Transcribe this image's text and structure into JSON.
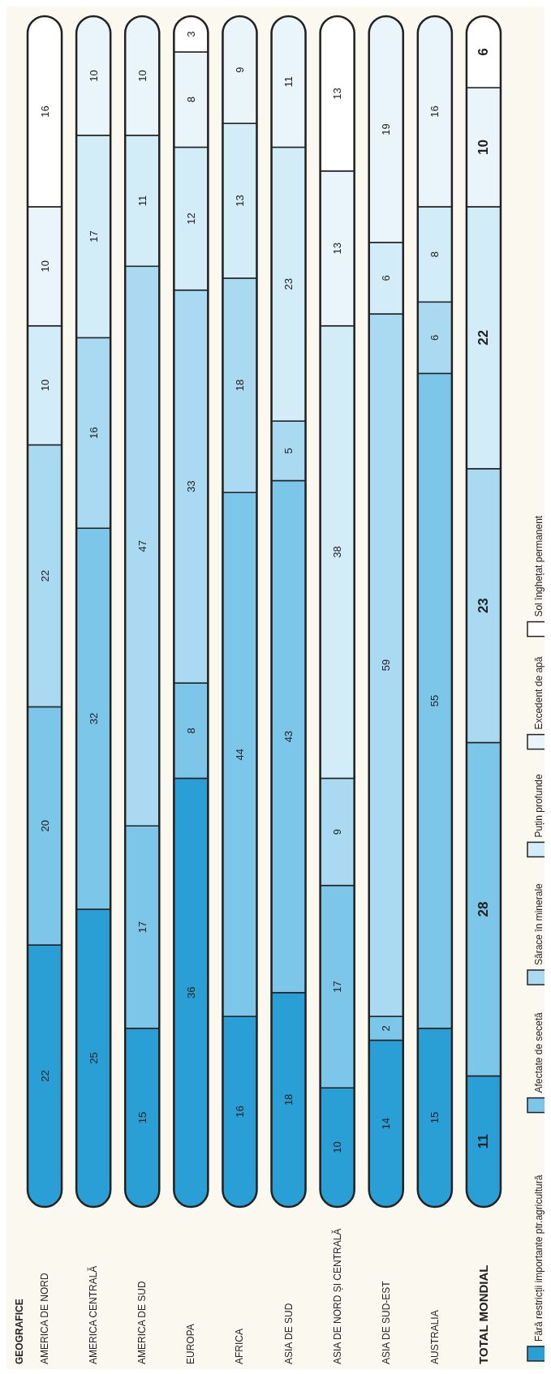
{
  "chart_data": {
    "type": "bar",
    "annotations": [
      "GEOGRAFICE"
    ],
    "stacked": true,
    "data_labels": true,
    "legend": "right",
    "categories": [
      "AMERICA DE NORD",
      "AMERICA CENTRALĂ",
      "AMERICA DE SUD",
      "EUROPA",
      "AFRICA",
      "ASIA DE SUD",
      "ASIA DE NORD ȘI CENTRALĂ",
      "ASIA DE SUD-EST",
      "AUSTRALIA",
      "TOTAL MONDIAL"
    ],
    "series": [
      {
        "name": "Fără restricții importante ptr.agricultură",
        "color": "#2a9fd6",
        "values": [
          22,
          25,
          15,
          36,
          16,
          18,
          10,
          14,
          15,
          11
        ]
      },
      {
        "name": "Afectate de secetă",
        "color": "#7cc6ea",
        "values": [
          20,
          32,
          17,
          8,
          44,
          43,
          17,
          2,
          55,
          28
        ]
      },
      {
        "name": "Sărace în minerale",
        "color": "#a9daf2",
        "values": [
          22,
          16,
          47,
          33,
          18,
          5,
          9,
          59,
          6,
          23
        ]
      },
      {
        "name": "Puțin profunde",
        "color": "#d2ecf8",
        "values": [
          10,
          17,
          11,
          12,
          13,
          23,
          38,
          6,
          8,
          22
        ]
      },
      {
        "name": "Excedent de apă",
        "color": "#e9f5fb",
        "values": [
          10,
          10,
          10,
          8,
          9,
          11,
          13,
          19,
          16,
          10
        ]
      },
      {
        "name": "Sol înghețat permanent",
        "color": "#ffffff",
        "values": [
          16,
          null,
          null,
          3,
          null,
          null,
          13,
          null,
          null,
          6
        ]
      }
    ]
  }
}
